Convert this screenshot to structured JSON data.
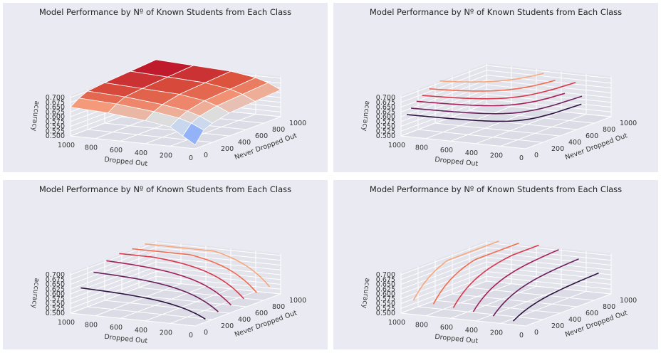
{
  "chart_data": [
    {
      "type": "surface",
      "title": "Model Performance by Nº of Known Students from Each Class",
      "xlabel": "Dropped Out",
      "ylabel": "Never Dropped Out",
      "zlabel": "accuracy",
      "x_ticks": [
        "0",
        "200",
        "400",
        "600",
        "800",
        "1000"
      ],
      "y_ticks": [
        "0",
        "200",
        "400",
        "600",
        "800",
        "1000"
      ],
      "z_ticks": [
        "0.500",
        "0.525",
        "0.550",
        "0.575",
        "0.600",
        "0.625",
        "0.650",
        "0.675",
        "0.700"
      ],
      "x": [
        0,
        100,
        200,
        400,
        700,
        1000
      ],
      "y": [
        0,
        100,
        200,
        400,
        700,
        1000
      ],
      "z": [
        [
          0.52,
          0.56,
          0.6,
          0.62,
          0.64,
          0.65
        ],
        [
          0.58,
          0.61,
          0.63,
          0.65,
          0.67,
          0.68
        ],
        [
          0.6,
          0.63,
          0.65,
          0.67,
          0.69,
          0.7
        ],
        [
          0.62,
          0.65,
          0.67,
          0.69,
          0.7,
          0.71
        ],
        [
          0.63,
          0.66,
          0.68,
          0.7,
          0.71,
          0.72
        ],
        [
          0.64,
          0.67,
          0.69,
          0.71,
          0.72,
          0.73
        ]
      ],
      "colormap": "coolwarm"
    },
    {
      "type": "contour",
      "title": "Model Performance by Nº of Known Students from Each Class",
      "xlabel": "Dropped Out",
      "ylabel": "Never Dropped Out",
      "zlabel": "accuracy",
      "x_ticks": [
        "0",
        "200",
        "400",
        "600",
        "800",
        "1000"
      ],
      "y_ticks": [
        "0",
        "200",
        "400",
        "600",
        "800",
        "1000"
      ],
      "z_ticks": [
        "0.500",
        "0.525",
        "0.550",
        "0.575",
        "0.600",
        "0.625",
        "0.650",
        "0.675",
        "0.700"
      ],
      "offset_axis": "z",
      "levels": [
        0.6,
        0.625,
        0.65,
        0.67,
        0.69,
        0.71
      ],
      "colors": [
        "#2d1340",
        "#6a1f5c",
        "#a41f57",
        "#d9374b",
        "#f26c4f",
        "#f7a77c"
      ]
    },
    {
      "type": "contour",
      "title": "Model Performance by Nº of Known Students from Each Class",
      "xlabel": "Dropped Out",
      "ylabel": "Never Dropped Out",
      "zlabel": "accuracy",
      "x_ticks": [
        "0",
        "200",
        "400",
        "600",
        "800",
        "1000"
      ],
      "y_ticks": [
        "0",
        "200",
        "400",
        "600",
        "800",
        "1000"
      ],
      "z_ticks": [
        "0.500",
        "0.525",
        "0.550",
        "0.575",
        "0.600",
        "0.625",
        "0.650",
        "0.675",
        "0.700"
      ],
      "offset_axis": "y",
      "levels": [
        0.6,
        0.625,
        0.65,
        0.67,
        0.69,
        0.71
      ],
      "colors": [
        "#2d1340",
        "#6a1f5c",
        "#a41f57",
        "#d9374b",
        "#f26c4f",
        "#f7a77c"
      ]
    },
    {
      "type": "contour",
      "title": "Model Performance by Nº of Known Students from Each Class",
      "xlabel": "Dropped Out",
      "ylabel": "Never Dropped Out",
      "zlabel": "accuracy",
      "x_ticks": [
        "0",
        "200",
        "400",
        "600",
        "800",
        "1000"
      ],
      "y_ticks": [
        "0",
        "200",
        "400",
        "600",
        "800",
        "1000"
      ],
      "z_ticks": [
        "0.500",
        "0.525",
        "0.550",
        "0.575",
        "0.600",
        "0.625",
        "0.650",
        "0.675",
        "0.700"
      ],
      "offset_axis": "x",
      "levels": [
        0.6,
        0.625,
        0.65,
        0.67,
        0.69,
        0.71
      ],
      "colors": [
        "#2d1340",
        "#6a1f5c",
        "#a41f57",
        "#d9374b",
        "#f26c4f",
        "#f7a77c"
      ]
    }
  ]
}
